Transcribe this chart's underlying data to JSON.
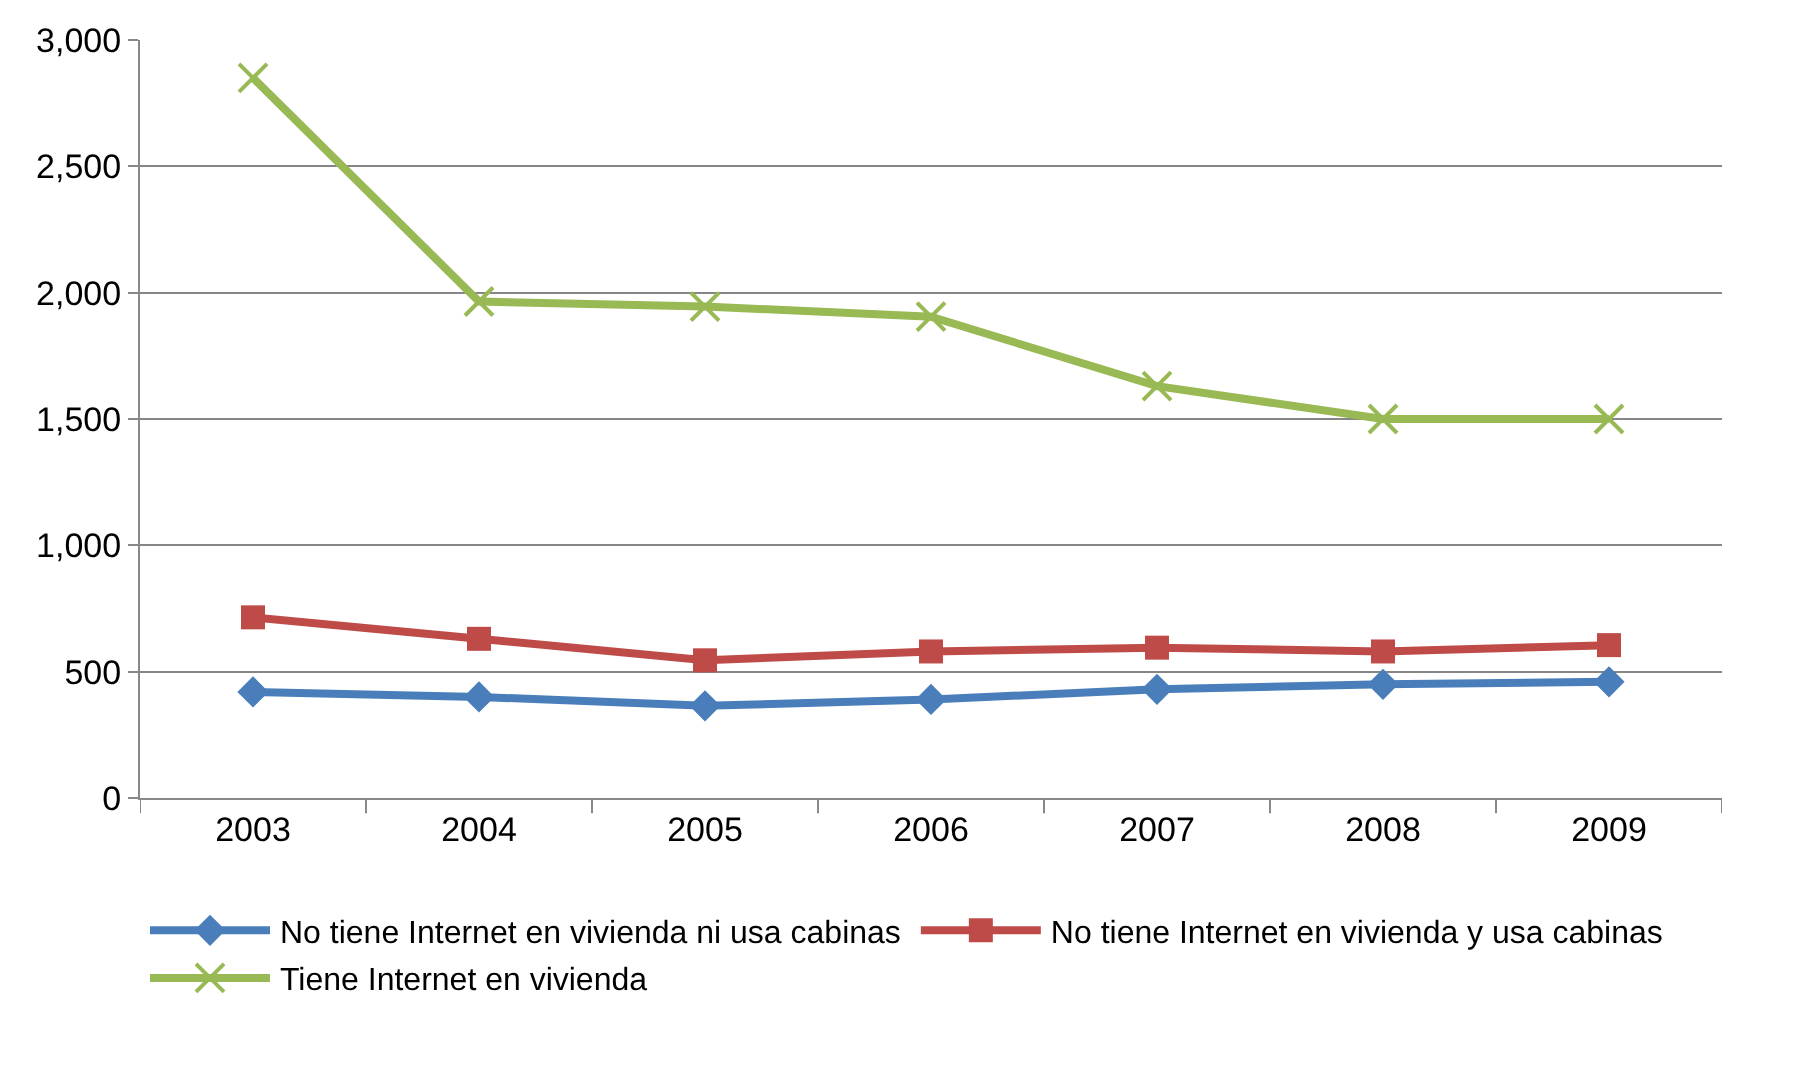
{
  "chart_data": {
    "type": "line",
    "categories": [
      "2003",
      "2004",
      "2005",
      "2006",
      "2007",
      "2008",
      "2009"
    ],
    "series": [
      {
        "name": "No tiene Internet en vivienda ni usa cabinas",
        "color": "#4a7ebb",
        "marker": "diamond",
        "values": [
          420,
          400,
          365,
          390,
          430,
          450,
          460
        ]
      },
      {
        "name": "No tiene Internet en vivienda y usa cabinas",
        "color": "#be4b48",
        "marker": "square",
        "values": [
          715,
          630,
          545,
          580,
          595,
          580,
          605
        ]
      },
      {
        "name": "Tiene Internet en vivienda",
        "color": "#98b954",
        "marker": "cross",
        "values": [
          2850,
          1965,
          1945,
          1905,
          1630,
          1500,
          1500
        ]
      }
    ],
    "ylim": [
      0,
      3000
    ],
    "yticks": [
      {
        "value": 0,
        "label": "0"
      },
      {
        "value": 500,
        "label": "500"
      },
      {
        "value": 1000,
        "label": "1,000"
      },
      {
        "value": 1500,
        "label": "1,500"
      },
      {
        "value": 2000,
        "label": "2,000"
      },
      {
        "value": 2500,
        "label": "2,500"
      },
      {
        "value": 3000,
        "label": "3,000"
      }
    ],
    "grid": "y",
    "legend": "bottom",
    "line_style": "solid"
  }
}
